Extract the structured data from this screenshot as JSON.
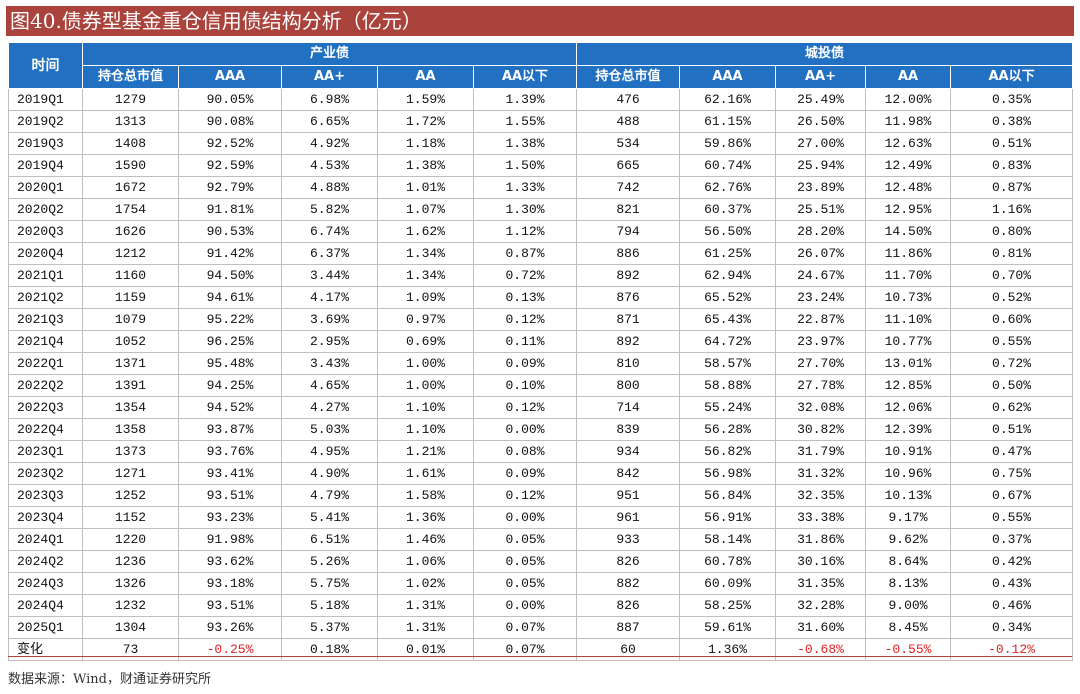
{
  "title": "图40.债券型基金重仓信用债结构分析（亿元）",
  "source": "数据来源：Wind，财通证券研究所",
  "colors": {
    "title_bg": "#a9433c",
    "header_bg": "#2170c2",
    "negative": "#e02020"
  },
  "chart_data": {
    "type": "table",
    "corner_label": "时间",
    "groups": [
      {
        "label": "产业债",
        "columns": [
          "持仓总市值",
          "AAA",
          "AA+",
          "AA",
          "AA以下"
        ]
      },
      {
        "label": "城投债",
        "columns": [
          "持仓总市值",
          "AAA",
          "AA+",
          "AA",
          "AA以下"
        ]
      }
    ],
    "rows": [
      {
        "period": "2019Q1",
        "values": [
          "1279",
          "90.05%",
          "6.98%",
          "1.59%",
          "1.39%",
          "476",
          "62.16%",
          "25.49%",
          "12.00%",
          "0.35%"
        ]
      },
      {
        "period": "2019Q2",
        "values": [
          "1313",
          "90.08%",
          "6.65%",
          "1.72%",
          "1.55%",
          "488",
          "61.15%",
          "26.50%",
          "11.98%",
          "0.38%"
        ]
      },
      {
        "period": "2019Q3",
        "values": [
          "1408",
          "92.52%",
          "4.92%",
          "1.18%",
          "1.38%",
          "534",
          "59.86%",
          "27.00%",
          "12.63%",
          "0.51%"
        ]
      },
      {
        "period": "2019Q4",
        "values": [
          "1590",
          "92.59%",
          "4.53%",
          "1.38%",
          "1.50%",
          "665",
          "60.74%",
          "25.94%",
          "12.49%",
          "0.83%"
        ]
      },
      {
        "period": "2020Q1",
        "values": [
          "1672",
          "92.79%",
          "4.88%",
          "1.01%",
          "1.33%",
          "742",
          "62.76%",
          "23.89%",
          "12.48%",
          "0.87%"
        ]
      },
      {
        "period": "2020Q2",
        "values": [
          "1754",
          "91.81%",
          "5.82%",
          "1.07%",
          "1.30%",
          "821",
          "60.37%",
          "25.51%",
          "12.95%",
          "1.16%"
        ]
      },
      {
        "period": "2020Q3",
        "values": [
          "1626",
          "90.53%",
          "6.74%",
          "1.62%",
          "1.12%",
          "794",
          "56.50%",
          "28.20%",
          "14.50%",
          "0.80%"
        ]
      },
      {
        "period": "2020Q4",
        "values": [
          "1212",
          "91.42%",
          "6.37%",
          "1.34%",
          "0.87%",
          "886",
          "61.25%",
          "26.07%",
          "11.86%",
          "0.81%"
        ]
      },
      {
        "period": "2021Q1",
        "values": [
          "1160",
          "94.50%",
          "3.44%",
          "1.34%",
          "0.72%",
          "892",
          "62.94%",
          "24.67%",
          "11.70%",
          "0.70%"
        ]
      },
      {
        "period": "2021Q2",
        "values": [
          "1159",
          "94.61%",
          "4.17%",
          "1.09%",
          "0.13%",
          "876",
          "65.52%",
          "23.24%",
          "10.73%",
          "0.52%"
        ]
      },
      {
        "period": "2021Q3",
        "values": [
          "1079",
          "95.22%",
          "3.69%",
          "0.97%",
          "0.12%",
          "871",
          "65.43%",
          "22.87%",
          "11.10%",
          "0.60%"
        ]
      },
      {
        "period": "2021Q4",
        "values": [
          "1052",
          "96.25%",
          "2.95%",
          "0.69%",
          "0.11%",
          "892",
          "64.72%",
          "23.97%",
          "10.77%",
          "0.55%"
        ]
      },
      {
        "period": "2022Q1",
        "values": [
          "1371",
          "95.48%",
          "3.43%",
          "1.00%",
          "0.09%",
          "810",
          "58.57%",
          "27.70%",
          "13.01%",
          "0.72%"
        ]
      },
      {
        "period": "2022Q2",
        "values": [
          "1391",
          "94.25%",
          "4.65%",
          "1.00%",
          "0.10%",
          "800",
          "58.88%",
          "27.78%",
          "12.85%",
          "0.50%"
        ]
      },
      {
        "period": "2022Q3",
        "values": [
          "1354",
          "94.52%",
          "4.27%",
          "1.10%",
          "0.12%",
          "714",
          "55.24%",
          "32.08%",
          "12.06%",
          "0.62%"
        ]
      },
      {
        "period": "2022Q4",
        "values": [
          "1358",
          "93.87%",
          "5.03%",
          "1.10%",
          "0.00%",
          "839",
          "56.28%",
          "30.82%",
          "12.39%",
          "0.51%"
        ]
      },
      {
        "period": "2023Q1",
        "values": [
          "1373",
          "93.76%",
          "4.95%",
          "1.21%",
          "0.08%",
          "934",
          "56.82%",
          "31.79%",
          "10.91%",
          "0.47%"
        ]
      },
      {
        "period": "2023Q2",
        "values": [
          "1271",
          "93.41%",
          "4.90%",
          "1.61%",
          "0.09%",
          "842",
          "56.98%",
          "31.32%",
          "10.96%",
          "0.75%"
        ]
      },
      {
        "period": "2023Q3",
        "values": [
          "1252",
          "93.51%",
          "4.79%",
          "1.58%",
          "0.12%",
          "951",
          "56.84%",
          "32.35%",
          "10.13%",
          "0.67%"
        ]
      },
      {
        "period": "2023Q4",
        "values": [
          "1152",
          "93.23%",
          "5.41%",
          "1.36%",
          "0.00%",
          "961",
          "56.91%",
          "33.38%",
          "9.17%",
          "0.55%"
        ]
      },
      {
        "period": "2024Q1",
        "values": [
          "1220",
          "91.98%",
          "6.51%",
          "1.46%",
          "0.05%",
          "933",
          "58.14%",
          "31.86%",
          "9.62%",
          "0.37%"
        ]
      },
      {
        "period": "2024Q2",
        "values": [
          "1236",
          "93.62%",
          "5.26%",
          "1.06%",
          "0.05%",
          "826",
          "60.78%",
          "30.16%",
          "8.64%",
          "0.42%"
        ]
      },
      {
        "period": "2024Q3",
        "values": [
          "1326",
          "93.18%",
          "5.75%",
          "1.02%",
          "0.05%",
          "882",
          "60.09%",
          "31.35%",
          "8.13%",
          "0.43%"
        ]
      },
      {
        "period": "2024Q4",
        "values": [
          "1232",
          "93.51%",
          "5.18%",
          "1.31%",
          "0.00%",
          "826",
          "58.25%",
          "32.28%",
          "9.00%",
          "0.46%"
        ]
      },
      {
        "period": "2025Q1",
        "values": [
          "1304",
          "93.26%",
          "5.37%",
          "1.31%",
          "0.07%",
          "887",
          "59.61%",
          "31.60%",
          "8.45%",
          "0.34%"
        ]
      }
    ],
    "change_row": {
      "period": "变化",
      "values": [
        "73",
        "-0.25%",
        "0.18%",
        "0.01%",
        "0.07%",
        "60",
        "1.36%",
        "-0.68%",
        "-0.55%",
        "-0.12%"
      ]
    }
  }
}
